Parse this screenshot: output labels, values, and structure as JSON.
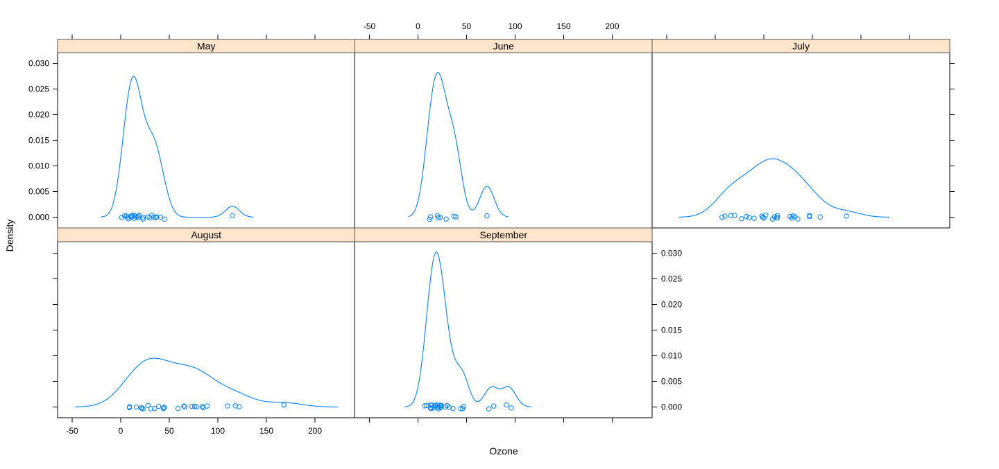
{
  "chart_data": {
    "type": "line",
    "title": "",
    "xlabel": "Ozone",
    "ylabel": "Density",
    "xlim": [
      -60,
      240
    ],
    "ylim": [
      -0.002,
      0.032
    ],
    "xticks": [
      "-50",
      "0",
      "50",
      "100",
      "150",
      "200"
    ],
    "xtick_values": [
      -50,
      0,
      50,
      100,
      150,
      200
    ],
    "yticks": [
      "0.000",
      "0.005",
      "0.010",
      "0.015",
      "0.020",
      "0.025",
      "0.030"
    ],
    "ytick_values": [
      0,
      0.005,
      0.01,
      0.015,
      0.02,
      0.025,
      0.03
    ],
    "colors": {
      "line": "#0080ff",
      "strip": "#ffe5cc"
    },
    "panels": [
      {
        "name": "May",
        "values": [
          41,
          36,
          12,
          18,
          28,
          23,
          19,
          8,
          7,
          16,
          11,
          14,
          18,
          14,
          34,
          6,
          30,
          11,
          1,
          11,
          4,
          32,
          23,
          45,
          115,
          37
        ]
      },
      {
        "name": "June",
        "values": [
          29,
          71,
          39,
          23,
          21,
          37,
          20,
          12,
          13
        ]
      },
      {
        "name": "July",
        "values": [
          135,
          49,
          32,
          64,
          40,
          77,
          97,
          97,
          85,
          10,
          27,
          7,
          48,
          35,
          61,
          79,
          63,
          16,
          80,
          108,
          20,
          52,
          82,
          50,
          64,
          59
        ]
      },
      {
        "name": "August",
        "values": [
          39,
          9,
          16,
          78,
          35,
          66,
          122,
          89,
          110,
          44,
          28,
          65,
          22,
          59,
          23,
          31,
          44,
          21,
          9,
          45,
          168,
          73,
          76,
          118,
          84,
          85
        ]
      },
      {
        "name": "September",
        "values": [
          96,
          78,
          73,
          91,
          47,
          32,
          20,
          23,
          21,
          24,
          44,
          21,
          28,
          9,
          13,
          46,
          18,
          13,
          24,
          16,
          13,
          23,
          36,
          7,
          14,
          30,
          14,
          18,
          20
        ]
      }
    ]
  }
}
